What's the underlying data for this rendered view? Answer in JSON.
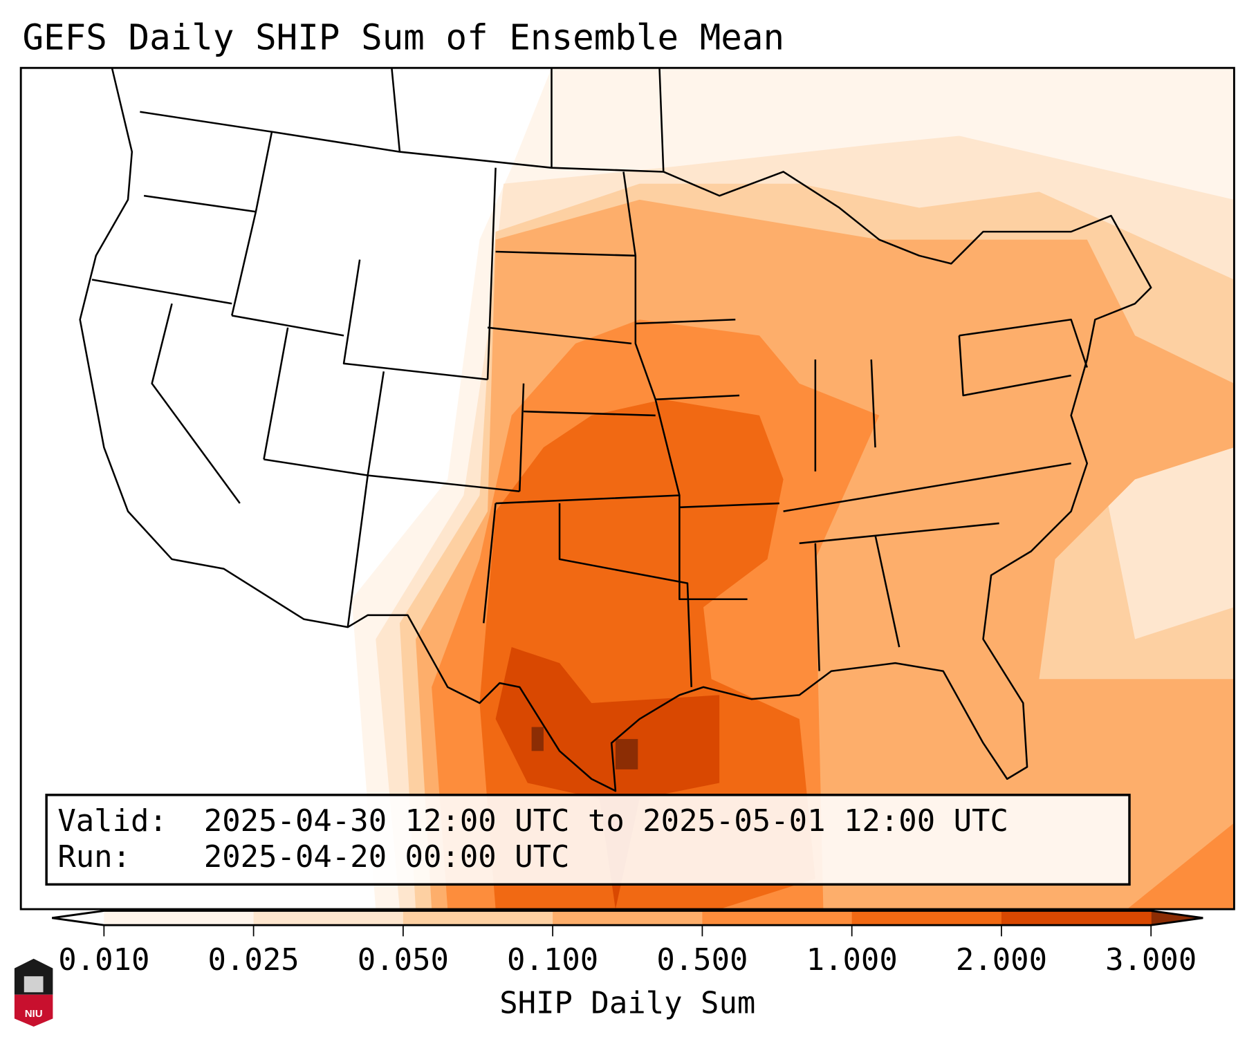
{
  "title": "GEFS Daily SHIP Sum of Ensemble Mean",
  "info_box": {
    "valid_label": "Valid:",
    "valid_value": "2025-04-30 12:00 UTC to 2025-05-01 12:00 UTC",
    "run_label": "Run:",
    "run_value": "2025-04-20 00:00 UTC"
  },
  "colorbar": {
    "label": "SHIP Daily Sum",
    "ticks": [
      "0.010",
      "0.025",
      "0.050",
      "0.100",
      "0.500",
      "1.000",
      "2.000",
      "3.000"
    ],
    "colors": [
      "#fff5eb",
      "#fee6ce",
      "#fdd0a2",
      "#fdae6b",
      "#fd8d3c",
      "#f16913",
      "#d94801"
    ],
    "under_color": "#ffffff",
    "over_color": "#8c2d04"
  },
  "logo": {
    "text": "NIU",
    "colors": {
      "top": "#1a1a1a",
      "bottom": "#c8102e"
    }
  }
}
